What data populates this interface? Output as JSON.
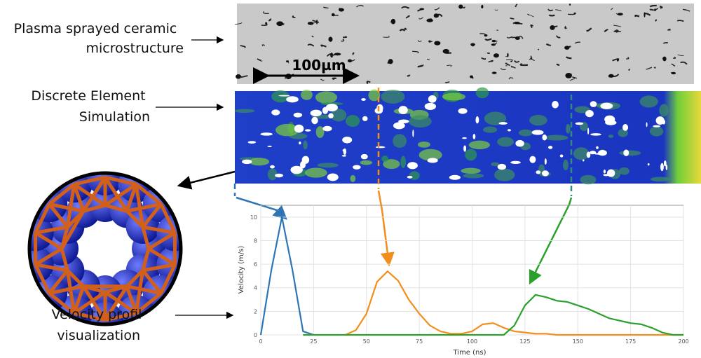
{
  "annotations": [
    {
      "lines": [
        "Plasma sprayed ceramic",
        "microstructure"
      ]
    },
    {
      "lines": [
        "Discrete Element",
        "Simulation"
      ]
    },
    {
      "lines": [
        "Velocity profil",
        "visualization"
      ]
    }
  ],
  "scale_bar": "100µm",
  "chart_data": {
    "type": "line",
    "x_label": "Time (ns)",
    "y_label": "Velocity (m/s)",
    "x": [
      0,
      5,
      10,
      15,
      20,
      25,
      30,
      35,
      40,
      45,
      50,
      55,
      60,
      65,
      70,
      75,
      80,
      85,
      90,
      95,
      100,
      105,
      110,
      115,
      120,
      125,
      130,
      135,
      140,
      145,
      150,
      155,
      160,
      165,
      170,
      175,
      180,
      185,
      190,
      195,
      200
    ],
    "series": [
      {
        "color": "#2e75b6",
        "values": [
          0,
          5.5,
          10,
          5.5,
          0.3,
          0,
          null,
          null,
          null,
          null,
          null,
          null,
          null,
          null,
          null,
          null,
          null,
          null,
          null,
          null,
          null,
          null,
          null,
          null,
          null,
          null,
          null,
          null,
          null,
          null,
          null,
          null,
          null,
          null,
          null,
          null,
          null,
          null,
          null,
          null,
          null
        ]
      },
      {
        "color": "#f28e1c",
        "values": [
          null,
          null,
          null,
          null,
          null,
          null,
          null,
          null,
          0,
          0.4,
          1.8,
          4.5,
          5.4,
          4.6,
          3.0,
          1.8,
          0.8,
          0.3,
          0.1,
          0.1,
          0.3,
          0.9,
          1.0,
          0.6,
          0.3,
          0.2,
          0.1,
          0.1,
          0,
          0,
          0,
          0,
          0,
          0,
          0,
          0,
          0,
          0,
          0,
          0,
          0
        ]
      },
      {
        "color": "#2ca02c",
        "values": [
          null,
          null,
          null,
          null,
          0,
          0,
          0,
          0,
          0,
          0,
          0,
          0,
          0,
          0,
          0,
          0,
          0,
          0,
          0,
          0,
          0,
          0,
          0,
          0,
          0.8,
          2.5,
          3.4,
          3.2,
          2.9,
          2.8,
          2.5,
          2.2,
          1.8,
          1.4,
          1.2,
          1.0,
          0.9,
          0.6,
          0.2,
          0,
          0
        ]
      }
    ],
    "xlim": [
      0,
      200
    ],
    "xticks": [
      0,
      25,
      50,
      75,
      100,
      125,
      150,
      175,
      200
    ],
    "ylim": [
      0,
      11
    ],
    "yticks": [
      0,
      2,
      4,
      6,
      8,
      10
    ],
    "grid": true
  }
}
